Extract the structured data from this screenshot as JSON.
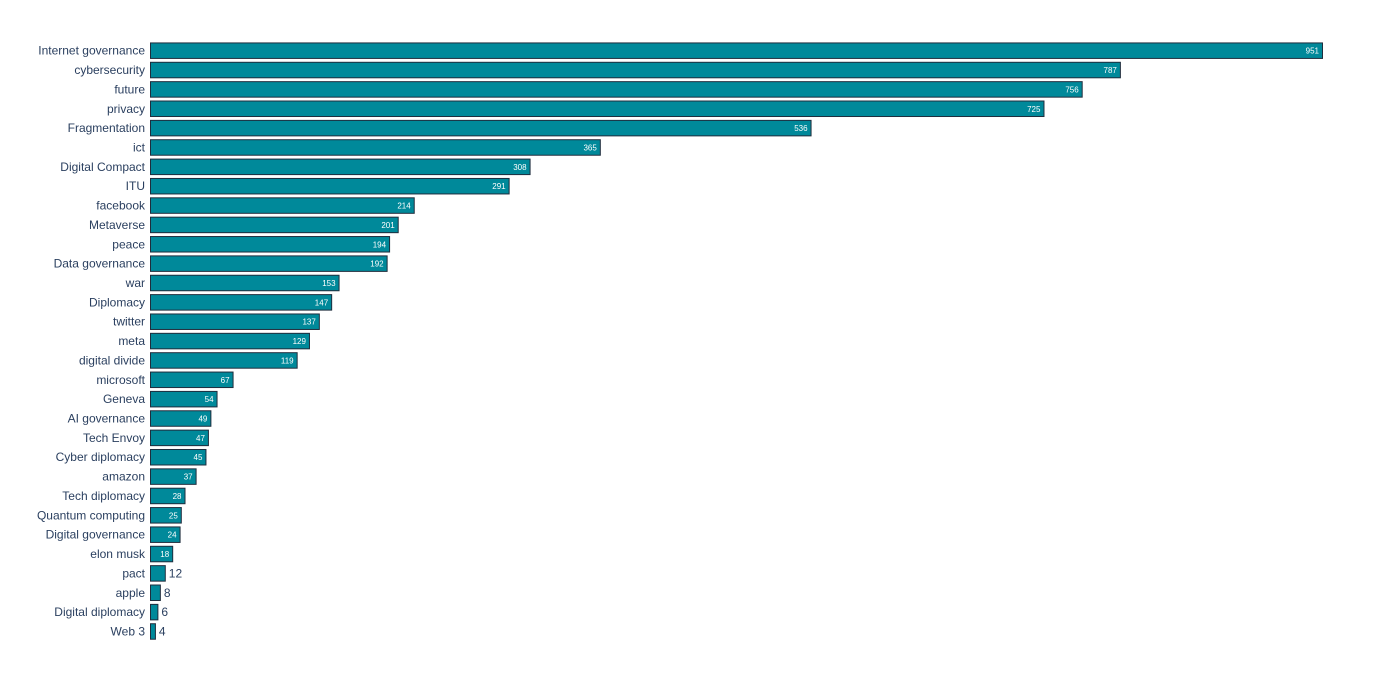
{
  "chart_data": {
    "type": "bar",
    "orientation": "horizontal",
    "bar_color": "#00899a",
    "bar_edge_color": "#1f2d3d",
    "label_color": "#2a3f5f",
    "categories": [
      "Internet governance",
      "cybersecurity",
      "future",
      "privacy",
      "Fragmentation",
      "ict",
      "Digital Compact",
      "ITU",
      "facebook",
      "Metaverse",
      "peace",
      "Data governance",
      "war",
      "Diplomacy",
      "twitter",
      "meta",
      "digital divide",
      "microsoft",
      "Geneva",
      "AI governance",
      "Tech Envoy",
      "Cyber diplomacy",
      "amazon",
      "Tech diplomacy",
      "Quantum computing",
      "Digital governance",
      "elon musk",
      "pact",
      "apple",
      "Digital diplomacy",
      "Web 3"
    ],
    "values": [
      951,
      787,
      756,
      725,
      536,
      365,
      308,
      291,
      214,
      201,
      194,
      192,
      153,
      147,
      137,
      129,
      119,
      67,
      54,
      49,
      47,
      45,
      37,
      28,
      25,
      24,
      18,
      12,
      8,
      6,
      4
    ],
    "xlim": [
      0,
      951
    ],
    "grid": false,
    "legend": "none"
  }
}
